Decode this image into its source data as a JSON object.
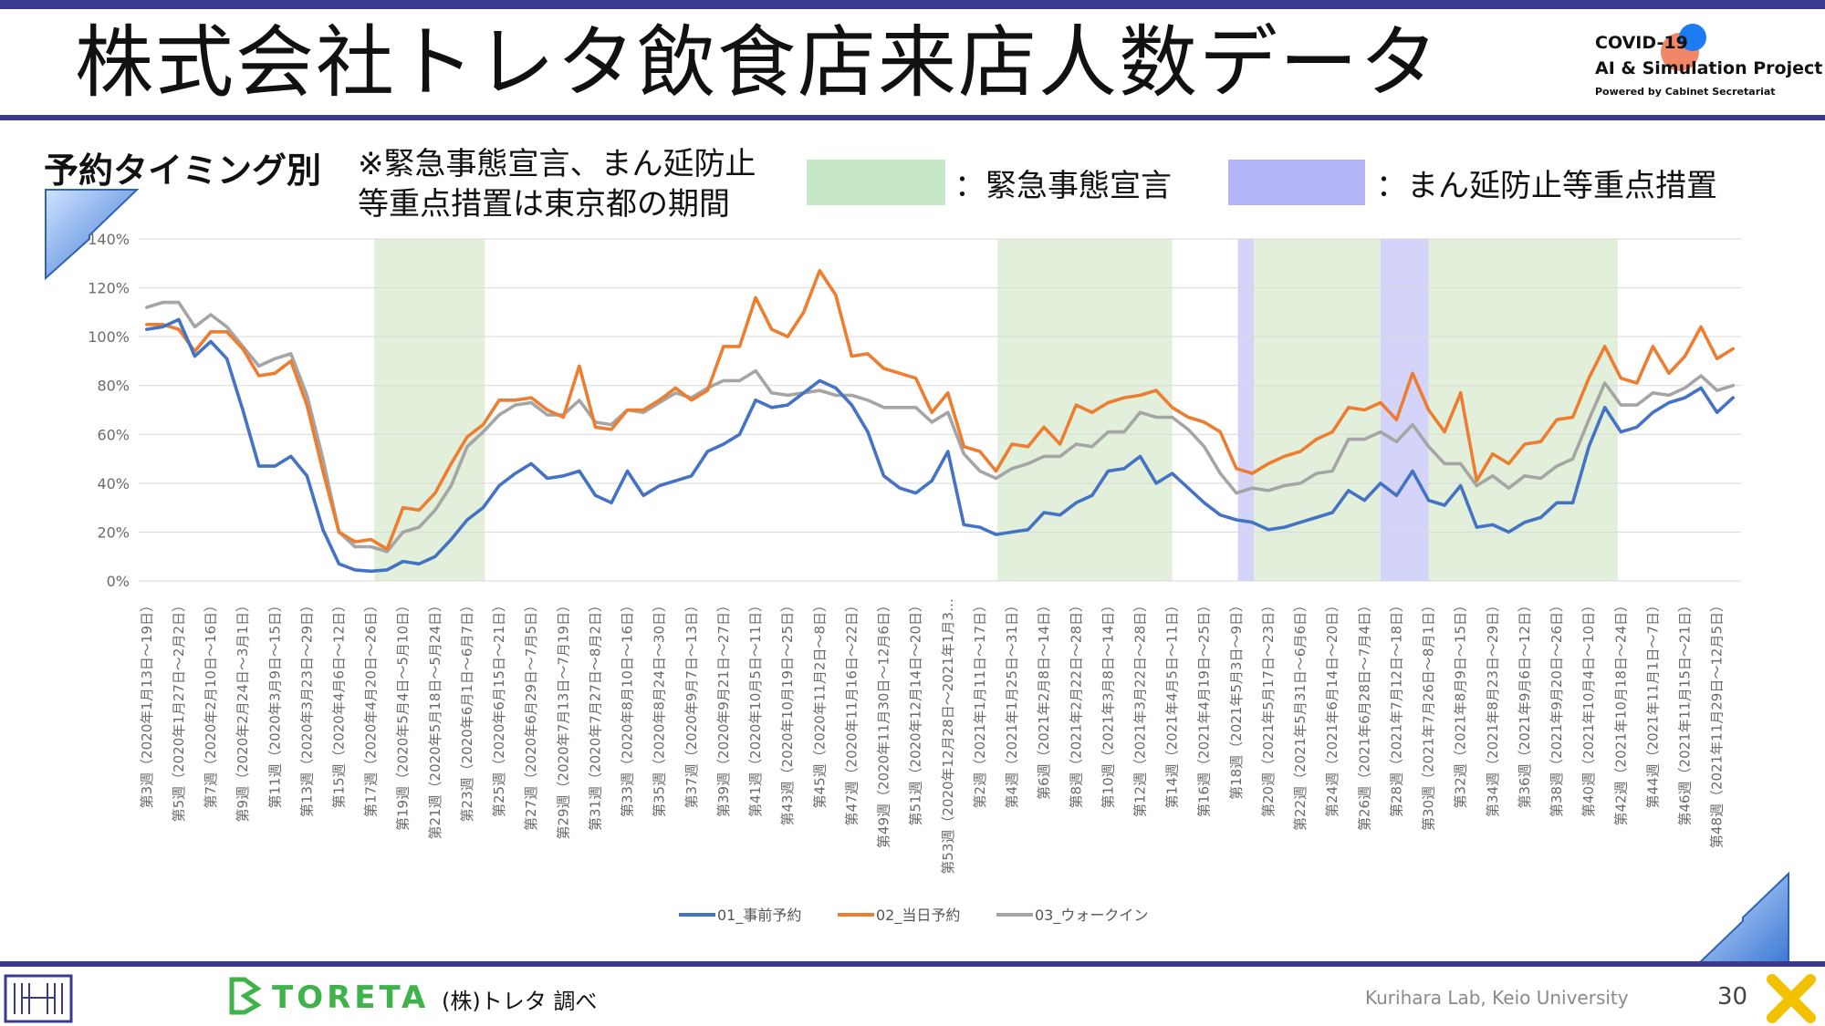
{
  "header": {
    "title": "株式会社トレタ飲食店来店人数データ",
    "logo_line1": "COVID-19",
    "logo_line2": "AI & Simulation Project",
    "logo_line3": "Powered by Cabinet Secretariat"
  },
  "subheader": {
    "category": "予約タイミング別",
    "note_line1": "※緊急事態宣言、まん延防止",
    "note_line2": "等重点措置は東京都の期間",
    "legend_emergency": "：緊急事態宣言",
    "legend_manbo": "：まん延防止等重点措置"
  },
  "colors": {
    "advance": "#4472c4",
    "sameday": "#ed7d31",
    "walkin": "#a5a5a5",
    "emergency_band": "#e2efda",
    "manbo_band": "#d4d4fa",
    "header_bar": "#3b3a8f"
  },
  "chart_data": {
    "type": "line",
    "ylim": [
      0,
      140
    ],
    "yticks": [
      "0%",
      "20%",
      "40%",
      "60%",
      "80%",
      "100%",
      "120%",
      "140%"
    ],
    "grid": true,
    "legend_position": "bottom",
    "x_labels": [
      "第3週（2020年1月13日～19日）",
      "第5週（2020年1月27日～2月2日）",
      "第7週（2020年2月10日～16日）",
      "第9週（2020年2月24日～3月1日）",
      "第11週（2020年3月9日～15日）",
      "第13週（2020年3月23日～29日）",
      "第15週（2020年4月6日～12日）",
      "第17週（2020年4月20日～26日）",
      "第19週（2020年5月4日～5月10日）",
      "第21週（2020年5月18日～5月24日）",
      "第23週（2020年6月1日～6月7日）",
      "第25週（2020年6月15日～21日）",
      "第27週（2020年6月29日～7月5日）",
      "第29週（2020年7月13日～7月19日）",
      "第31週（2020年7月27日～8月2日）",
      "第33週（2020年8月10日～16日）",
      "第35週（2020年8月24日～30日）",
      "第37週（2020年9月7日～13日）",
      "第39週（2020年9月21日～27日）",
      "第41週（2020年10月5日～11日）",
      "第43週（2020年10月19日～25日）",
      "第45週（2020年11月2日～8日）",
      "第47週（2020年11月16日～22日）",
      "第49週（2020年11月30日～12月6日）",
      "第51週（2020年12月14日～20日）",
      "第53週（2020年12月28日～2021年1月3…",
      "第2週（2021年1月11日～17日）",
      "第4週（2021年1月25日～31日）",
      "第6週（2021年2月8日～14日）",
      "第8週（2021年2月22日～28日）",
      "第10週（2021年3月8日～14日）",
      "第12週（2021年3月22日～28日）",
      "第14週（2021年4月5日～11日）",
      "第16週（2021年4月19日～25日）",
      "第18週（2021年5月3日～9日）",
      "第20週（2021年5月17日～23日）",
      "第22週（2021年5月31日～6月6日）",
      "第24週（2021年6月14日～20日）",
      "第26週（2021年6月28日～7月4日）",
      "第28週（2021年7月12日～18日）",
      "第30週（2021年7月26日～8月1日）",
      "第32週（2021年8月9日～15日）",
      "第34週（2021年8月23日～29日）",
      "第36週（2021年9月6日～12日）",
      "第38週（2021年9月20日～26日）",
      "第40週（2021年10月4日～10日）",
      "第42週（2021年10月18日～24日）",
      "第44週（2021年11月1日～7日）",
      "第46週（2021年11月15日～21日）",
      "第48週（2021年11月29日～12月5日）"
    ],
    "bands": [
      {
        "kind": "emergency",
        "from": 14.7,
        "to": 21.6
      },
      {
        "kind": "emergency",
        "from": 53.6,
        "to": 64.5
      },
      {
        "kind": "manbo",
        "from": 68.6,
        "to": 69.6
      },
      {
        "kind": "emergency",
        "from": 69.6,
        "to": 77.5
      },
      {
        "kind": "manbo",
        "from": 77.5,
        "to": 80.5
      },
      {
        "kind": "emergency",
        "from": 80.5,
        "to": 92.3
      }
    ],
    "series": [
      {
        "name": "01_事前予約",
        "color_key": "advance",
        "values": [
          103,
          104,
          107,
          92,
          98,
          91,
          70,
          47,
          47,
          51,
          43,
          21,
          7,
          4.5,
          4,
          4.5,
          8,
          7,
          10,
          17,
          25,
          30,
          39,
          44,
          48,
          42,
          43,
          45,
          35,
          32,
          45,
          35,
          39,
          41,
          43,
          53,
          56,
          60,
          74,
          71,
          72,
          77,
          82,
          79,
          72,
          61,
          43,
          38,
          36,
          41,
          53,
          23,
          22,
          19,
          20,
          21,
          28,
          27,
          32,
          35,
          45,
          46,
          51,
          40,
          44,
          38,
          32,
          27,
          25,
          24,
          21,
          22,
          24,
          26,
          28,
          37,
          33,
          40,
          35,
          45,
          33,
          31,
          39,
          22,
          23,
          20,
          24,
          26,
          32,
          32,
          55,
          71,
          61,
          63,
          69,
          73,
          75,
          79,
          69,
          75
        ]
      },
      {
        "name": "02_当日予約",
        "color_key": "sameday",
        "values": [
          105,
          105,
          103,
          94,
          102,
          102,
          95,
          84,
          85,
          90,
          72,
          45,
          20,
          16,
          17,
          13,
          30,
          29,
          36,
          48,
          59,
          64,
          74,
          74,
          75,
          70,
          67,
          88,
          63,
          62,
          70,
          70,
          74,
          79,
          74,
          78,
          96,
          96,
          116,
          103,
          100,
          110,
          127,
          117,
          92,
          93,
          87,
          85,
          83,
          69,
          77,
          55,
          53,
          45,
          56,
          55,
          63,
          56,
          72,
          69,
          73,
          75,
          76,
          78,
          71,
          67,
          65,
          61,
          46,
          44,
          48,
          51,
          53,
          58,
          61,
          71,
          70,
          73,
          66,
          85,
          70,
          61,
          77,
          41,
          52,
          48,
          56,
          57,
          66,
          67,
          83,
          96,
          83,
          81,
          96,
          85,
          92,
          104,
          91,
          95
        ]
      },
      {
        "name": "03_ウォークイン",
        "color_key": "walkin",
        "values": [
          112,
          114,
          114,
          104,
          109,
          104,
          96,
          88,
          91,
          93,
          76,
          50,
          20,
          14,
          14,
          12,
          20,
          22,
          29,
          39,
          55,
          61,
          68,
          72,
          73,
          68,
          68,
          74,
          65,
          64,
          70,
          69,
          73,
          77,
          75,
          79,
          82,
          82,
          86,
          77,
          76,
          77,
          78,
          76,
          76,
          74,
          71,
          71,
          71,
          65,
          69,
          52,
          45,
          42,
          46,
          48,
          51,
          51,
          56,
          55,
          61,
          61,
          69,
          67,
          67,
          62,
          55,
          44,
          36,
          38,
          37,
          39,
          40,
          44,
          45,
          58,
          58,
          61,
          57,
          64,
          55,
          48,
          48,
          39,
          43,
          38,
          43,
          42,
          47,
          50,
          66,
          81,
          72,
          72,
          77,
          76,
          79,
          84,
          78,
          80
        ]
      }
    ]
  },
  "footer": {
    "brand": "TORETA",
    "source": "(株)トレタ 調べ",
    "lab": "Kurihara Lab, Keio University",
    "page": "30"
  }
}
